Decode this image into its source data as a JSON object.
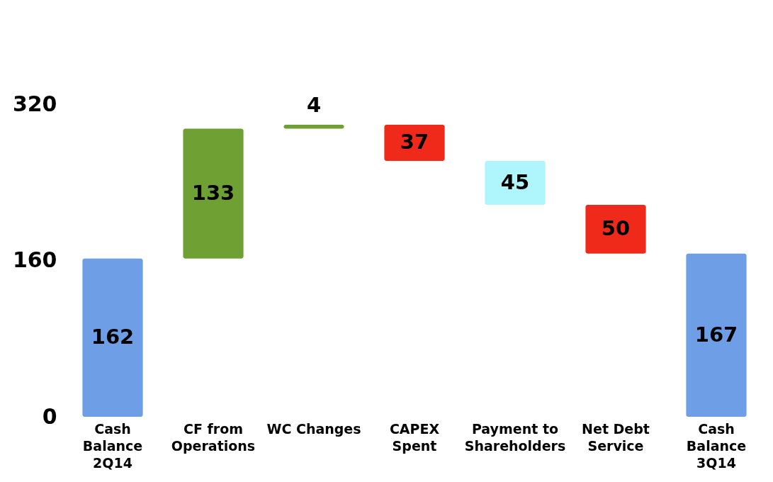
{
  "chart_data": {
    "type": "bar",
    "categories": [
      "Cash Balance 2Q14",
      "CF from Operations",
      "WC Changes",
      "CAPEX Spent",
      "Payment to Shareholders",
      "Net Debt Service",
      "Cash Balance 3Q14"
    ],
    "values": [
      162,
      133,
      4,
      37,
      45,
      50,
      167
    ],
    "base": [
      0,
      162,
      295,
      262,
      217,
      167,
      0
    ],
    "colors": [
      "#6e9fe6",
      "#6fa033",
      "#6fa033",
      "#f02a1a",
      "#aef6fb",
      "#f02a1a",
      "#6e9fe6"
    ],
    "ylim": [
      0,
      320
    ],
    "yticks": [
      0,
      160,
      320
    ],
    "data_labels": true
  }
}
